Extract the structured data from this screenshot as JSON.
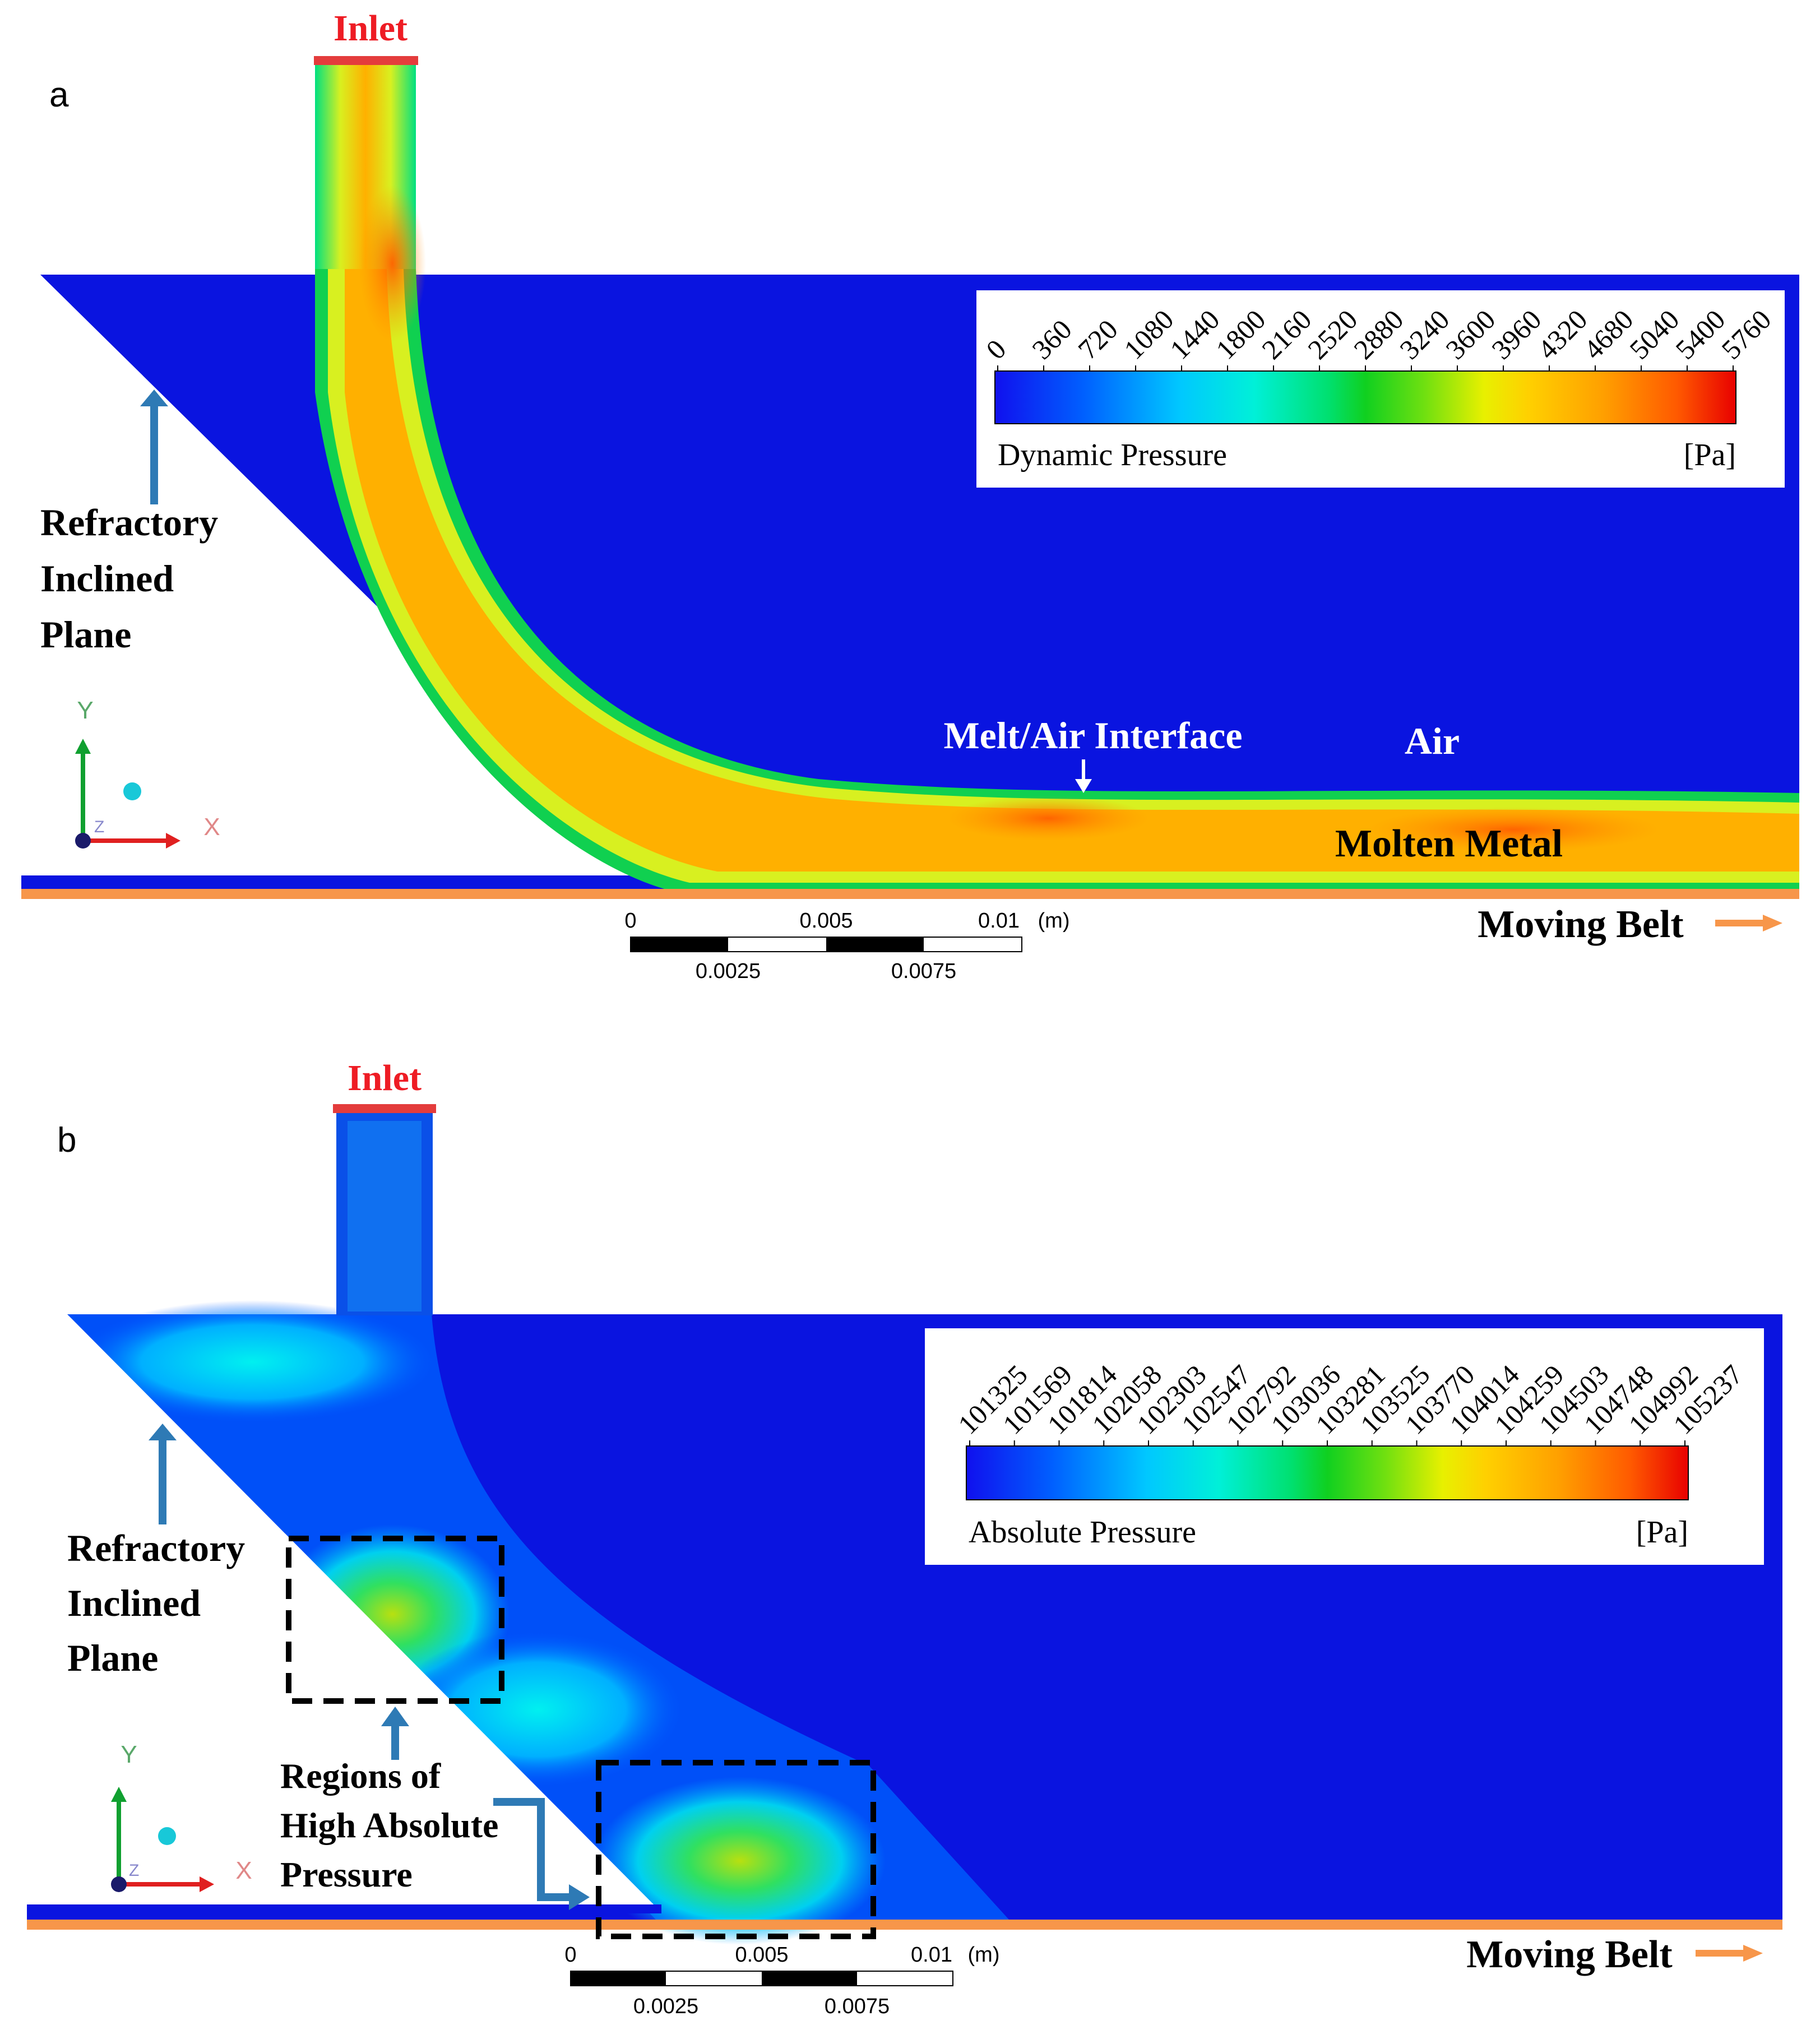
{
  "colors": {
    "field_blue": "#0a14e0",
    "belt_orange": "#f7964a",
    "inlet_red": "#e43c3c",
    "inlet_text": "#ee1c24",
    "annotation_blue": "#2e7ab5",
    "axis_x": "#e02020",
    "axis_y": "#10a030",
    "axis_label_x": "#e08888",
    "axis_label_y": "#5aa86a"
  },
  "panel_a": {
    "letter": "a",
    "inlet_label": "Inlet",
    "refractory_label": [
      "Refractory",
      "Inclined",
      "Plane"
    ],
    "interface_label": "Melt/Air Interface",
    "air_label": "Air",
    "molten_label": "Molten Metal",
    "belt_label": "Moving Belt",
    "legend": {
      "title": "Dynamic Pressure",
      "unit": "[Pa]",
      "ticks": [
        "0",
        "360",
        "720",
        "1080",
        "1440",
        "1800",
        "2160",
        "2520",
        "2880",
        "3240",
        "3600",
        "3960",
        "4320",
        "4680",
        "5040",
        "5400",
        "5760"
      ]
    },
    "scale": {
      "top_labels": [
        "0",
        "0.005",
        "0.01"
      ],
      "unit": "(m)",
      "bottom_labels": [
        "0.0025",
        "0.0075"
      ]
    },
    "axes": {
      "x": "X",
      "y": "Y",
      "z": "Z"
    }
  },
  "panel_b": {
    "letter": "b",
    "inlet_label": "Inlet",
    "refractory_label": [
      "Refractory",
      "Inclined",
      "Plane"
    ],
    "regions_label": [
      "Regions of",
      "High Absolute",
      "Pressure"
    ],
    "belt_label": "Moving Belt",
    "legend": {
      "title": "Absolute Pressure",
      "unit": "[Pa]",
      "ticks": [
        "101325",
        "101569",
        "101814",
        "102058",
        "102303",
        "102547",
        "102792",
        "103036",
        "103281",
        "103525",
        "103770",
        "104014",
        "104259",
        "104503",
        "104748",
        "104992",
        "105237"
      ]
    },
    "scale": {
      "top_labels": [
        "0",
        "0.005",
        "0.01"
      ],
      "unit": "(m)",
      "bottom_labels": [
        "0.0025",
        "0.0075"
      ]
    },
    "axes": {
      "x": "X",
      "y": "Y",
      "z": "Z"
    }
  }
}
